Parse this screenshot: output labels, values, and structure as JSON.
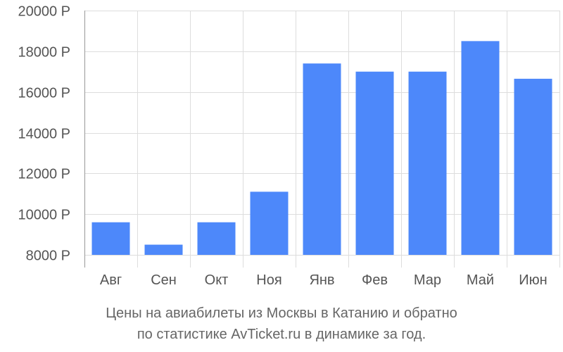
{
  "chart_data": {
    "type": "bar",
    "categories": [
      "Авг",
      "Сен",
      "Окт",
      "Ноя",
      "Янв",
      "Фев",
      "Мар",
      "Май",
      "Июн"
    ],
    "values": [
      9600,
      8500,
      9600,
      11100,
      17400,
      17000,
      17000,
      18500,
      16650
    ],
    "ylim": [
      8000,
      20000
    ],
    "yticks": [
      8000,
      10000,
      12000,
      14000,
      16000,
      18000,
      20000
    ],
    "ytick_labels": [
      "8000 Р",
      "10000 Р",
      "12000 Р",
      "14000 Р",
      "16000 Р",
      "18000 Р",
      "20000 Р"
    ],
    "grid": true,
    "bar_color": "#4d88fa",
    "grid_color": "#dddddd",
    "axis_color": "#999999"
  },
  "caption": {
    "line1": "Цены на авиабилеты из Москвы в Катанию и обратно",
    "line2": "по статистике AvTicket.ru в динамике за год."
  }
}
